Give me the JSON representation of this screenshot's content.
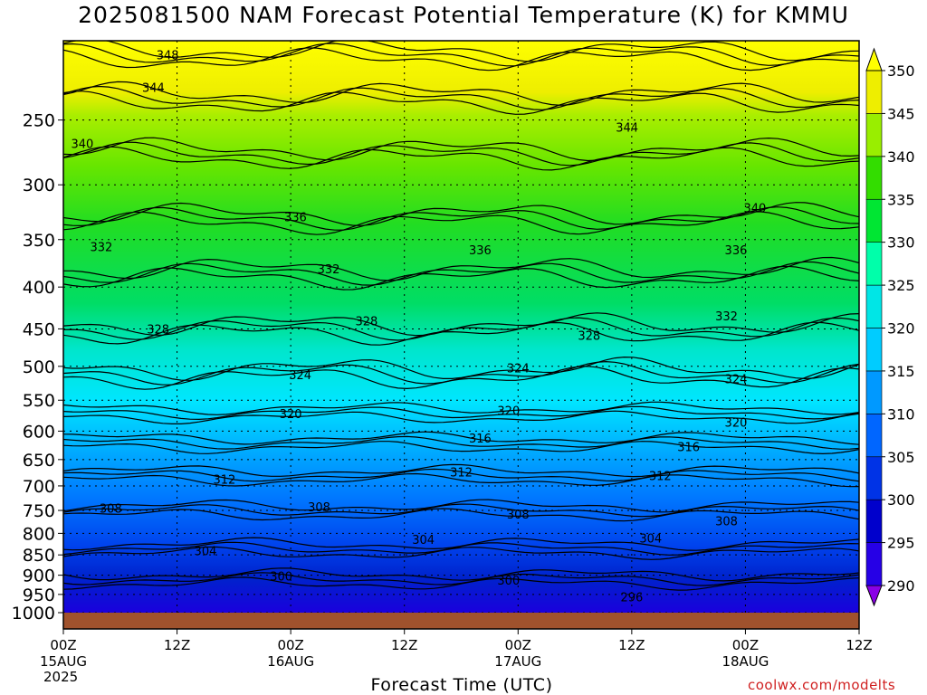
{
  "title": "2025081500 NAM Forecast Potential Temperature (K) for KMMU",
  "x_axis_title": "Forecast Time (UTC)",
  "credit": "coolwx.com/modelts",
  "year_label": "2025",
  "chart_data": {
    "type": "heatmap",
    "title": "2025081500 NAM Forecast Potential Temperature (K) for KMMU",
    "xlabel": "Forecast Time (UTC)",
    "ylabel": "",
    "y_scale": "log-pressure (hPa)",
    "ylim": [
      1000,
      200
    ],
    "xlim_hours": [
      0,
      84
    ],
    "grid": "dotted",
    "y_ticks": [
      250,
      300,
      350,
      400,
      450,
      500,
      550,
      600,
      650,
      700,
      750,
      800,
      850,
      900,
      950,
      1000
    ],
    "x_ticks": [
      {
        "hour": 0,
        "label": "00Z",
        "sub": "15AUG"
      },
      {
        "hour": 12,
        "label": "12Z",
        "sub": ""
      },
      {
        "hour": 24,
        "label": "00Z",
        "sub": "16AUG"
      },
      {
        "hour": 36,
        "label": "12Z",
        "sub": ""
      },
      {
        "hour": 48,
        "label": "00Z",
        "sub": "17AUG"
      },
      {
        "hour": 60,
        "label": "12Z",
        "sub": ""
      },
      {
        "hour": 72,
        "label": "00Z",
        "sub": "18AUG"
      },
      {
        "hour": 84,
        "label": "12Z",
        "sub": ""
      }
    ],
    "colorbar": {
      "levels": [
        290,
        295,
        300,
        305,
        310,
        315,
        320,
        325,
        330,
        335,
        340,
        345,
        350
      ],
      "colors": [
        "#8a00e6",
        "#2600e6",
        "#0000cc",
        "#0033e6",
        "#0066ff",
        "#0099ff",
        "#00ccff",
        "#00e6e6",
        "#00ffaa",
        "#00e633",
        "#33dd00",
        "#99ee00",
        "#eeee00",
        "#ffff00"
      ],
      "placement": "right"
    },
    "contour_interval_K": 4,
    "contour_labels": [
      {
        "value": 348,
        "hour": 11,
        "p": 208
      },
      {
        "value": 344,
        "hour": 9.5,
        "p": 228
      },
      {
        "value": 344,
        "hour": 59.5,
        "p": 255
      },
      {
        "value": 340,
        "hour": 2,
        "p": 267
      },
      {
        "value": 340,
        "hour": 73,
        "p": 320
      },
      {
        "value": 336,
        "hour": 24.5,
        "p": 328
      },
      {
        "value": 336,
        "hour": 44,
        "p": 360
      },
      {
        "value": 336,
        "hour": 71,
        "p": 360
      },
      {
        "value": 332,
        "hour": 4,
        "p": 357
      },
      {
        "value": 332,
        "hour": 28,
        "p": 380
      },
      {
        "value": 332,
        "hour": 70,
        "p": 434
      },
      {
        "value": 328,
        "hour": 10,
        "p": 450
      },
      {
        "value": 328,
        "hour": 32,
        "p": 440
      },
      {
        "value": 328,
        "hour": 55.5,
        "p": 458
      },
      {
        "value": 324,
        "hour": 25,
        "p": 512
      },
      {
        "value": 324,
        "hour": 48,
        "p": 502
      },
      {
        "value": 324,
        "hour": 71,
        "p": 518
      },
      {
        "value": 320,
        "hour": 24,
        "p": 571
      },
      {
        "value": 320,
        "hour": 47,
        "p": 566
      },
      {
        "value": 320,
        "hour": 71,
        "p": 585
      },
      {
        "value": 316,
        "hour": 44,
        "p": 612
      },
      {
        "value": 316,
        "hour": 66,
        "p": 627
      },
      {
        "value": 312,
        "hour": 17,
        "p": 687
      },
      {
        "value": 312,
        "hour": 42,
        "p": 673
      },
      {
        "value": 312,
        "hour": 63,
        "p": 680
      },
      {
        "value": 308,
        "hour": 5,
        "p": 745
      },
      {
        "value": 308,
        "hour": 27,
        "p": 742
      },
      {
        "value": 308,
        "hour": 48,
        "p": 758
      },
      {
        "value": 308,
        "hour": 70,
        "p": 772
      },
      {
        "value": 304,
        "hour": 15,
        "p": 840
      },
      {
        "value": 304,
        "hour": 38,
        "p": 814
      },
      {
        "value": 304,
        "hour": 62,
        "p": 810
      },
      {
        "value": 300,
        "hour": 23,
        "p": 902
      },
      {
        "value": 300,
        "hour": 47,
        "p": 912
      },
      {
        "value": 296,
        "hour": 60,
        "p": 957
      }
    ],
    "isentrope_pressures": [
      {
        "value": 300,
        "p": 910
      },
      {
        "value": 304,
        "p": 835
      },
      {
        "value": 308,
        "p": 750
      },
      {
        "value": 312,
        "p": 680
      },
      {
        "value": 316,
        "p": 620
      },
      {
        "value": 320,
        "p": 570
      },
      {
        "value": 324,
        "p": 510
      },
      {
        "value": 328,
        "p": 450
      },
      {
        "value": 332,
        "p": 385
      },
      {
        "value": 336,
        "p": 330
      },
      {
        "value": 340,
        "p": 275
      },
      {
        "value": 344,
        "p": 235
      },
      {
        "value": 348,
        "p": 208
      }
    ]
  }
}
